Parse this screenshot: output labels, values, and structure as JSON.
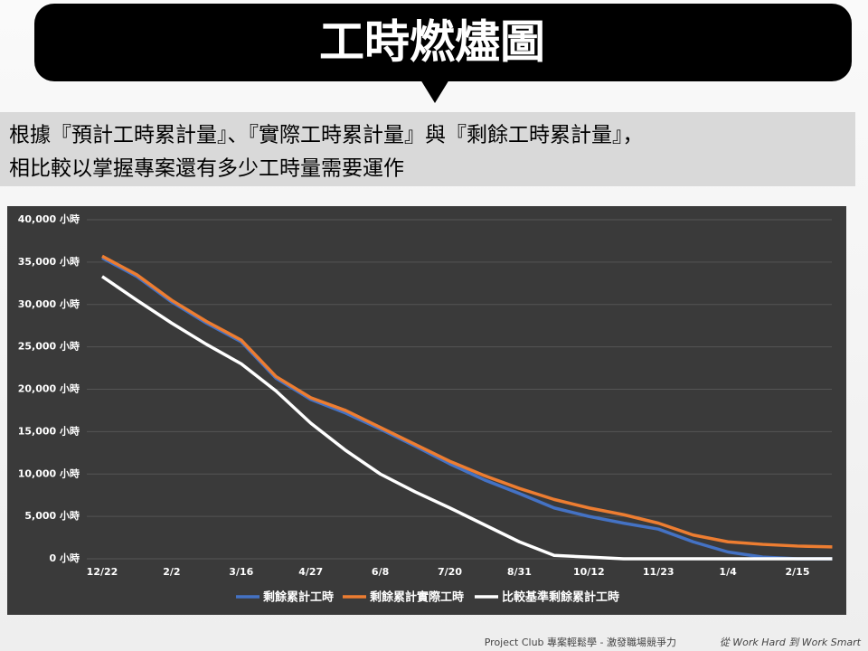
{
  "header": {
    "title": "工時燃燼圖"
  },
  "subtitle": [
    "根據『預計工時累計量』、『實際工時累計量』與『剩餘工時累計量』，",
    "相比較以掌握專案還有多少工時量需要運作"
  ],
  "chart_data": {
    "type": "line",
    "categories": [
      "12/22",
      null,
      "2/2",
      null,
      "3/16",
      null,
      "4/27",
      null,
      "6/8",
      null,
      "7/20",
      null,
      "8/31",
      null,
      "10/12",
      null,
      "11/23",
      null,
      "1/4",
      null,
      "2/15",
      null
    ],
    "series": [
      {
        "name": "剩餘累計工時",
        "color": "#4472c4",
        "values": [
          35500,
          33300,
          30300,
          27800,
          25600,
          21300,
          18800,
          17200,
          15300,
          13300,
          11200,
          9300,
          7700,
          6000,
          5000,
          4200,
          3500,
          2000,
          800,
          200,
          0,
          0
        ]
      },
      {
        "name": "剩餘累計實際工時",
        "color": "#ed7d31",
        "values": [
          35700,
          33500,
          30500,
          28000,
          25800,
          21500,
          19000,
          17500,
          15500,
          13500,
          11500,
          9800,
          8300,
          7000,
          6000,
          5200,
          4200,
          2800,
          2000,
          1700,
          1500,
          1400
        ]
      },
      {
        "name": "比較基準剩餘累計工時",
        "color": "#ffffff",
        "values": [
          33300,
          30500,
          27800,
          25300,
          23000,
          19800,
          16000,
          12800,
          10000,
          7900,
          6000,
          4000,
          2000,
          400,
          200,
          0,
          0,
          0,
          0,
          0,
          0,
          0
        ]
      }
    ],
    "ylim": [
      0,
      40000
    ],
    "yticks": [
      {
        "value": 0,
        "label": "0 小時"
      },
      {
        "value": 5000,
        "label": "5,000 小時"
      },
      {
        "value": 10000,
        "label": "10,000 小時"
      },
      {
        "value": 15000,
        "label": "15,000 小時"
      },
      {
        "value": 20000,
        "label": "20,000 小時"
      },
      {
        "value": 25000,
        "label": "25,000 小時"
      },
      {
        "value": 30000,
        "label": "30,000 小時"
      },
      {
        "value": 35000,
        "label": "35,000 小時"
      },
      {
        "value": 40000,
        "label": "40,000 小時"
      }
    ],
    "grid": true,
    "legend": "bottom"
  },
  "footer": {
    "left": "Project Club 專案輕鬆學 - 激發職場競爭力",
    "right": "從 Work Hard 到 Work Smart"
  }
}
